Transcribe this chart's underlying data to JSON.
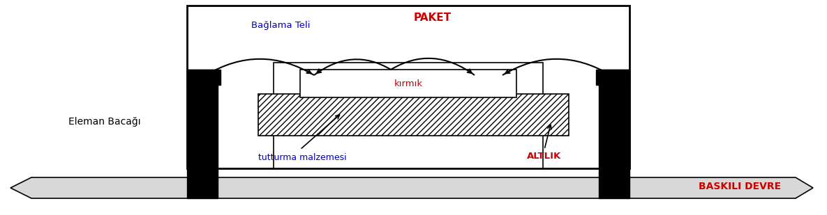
{
  "fig_width": 11.85,
  "fig_height": 3.09,
  "dpi": 100,
  "bg_color": "#ffffff",
  "text_color_red": "#cc0000",
  "text_color_blue": "#0000cc",
  "text_color_black": "#000000",
  "labels": {
    "paket": "PAKET",
    "baglama_teli": "Bağlama Teli",
    "kirmik": "kırmık",
    "tutturma": "tutturma malzemesi",
    "altlik": "ALTLIK",
    "eleman_bacagi": "Eleman Bacağı",
    "baskili_devre": "BASKILI DEVRE"
  }
}
